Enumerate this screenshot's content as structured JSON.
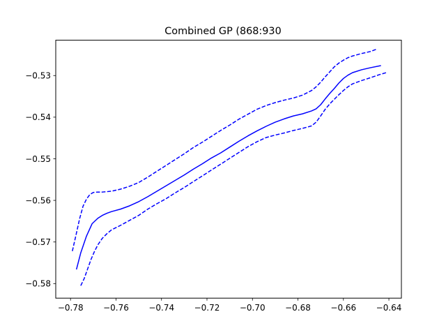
{
  "chart_data": {
    "type": "line",
    "title": "Combined GP (868:930",
    "xlabel": "",
    "ylabel": "",
    "xlim": [
      -0.7865,
      -0.6345
    ],
    "ylim": [
      -0.5835,
      -0.5215
    ],
    "xticks": [
      -0.78,
      -0.76,
      -0.74,
      -0.72,
      -0.7,
      -0.68,
      -0.66,
      -0.64
    ],
    "xtick_labels": [
      "−0.78",
      "−0.76",
      "−0.74",
      "−0.72",
      "−0.70",
      "−0.68",
      "−0.66",
      "−0.64"
    ],
    "yticks": [
      -0.53,
      -0.54,
      -0.55,
      -0.56,
      -0.57,
      -0.58
    ],
    "ytick_labels": [
      "−0.53",
      "−0.54",
      "−0.55",
      "−0.56",
      "−0.57",
      "−0.58"
    ],
    "grid": false,
    "legend": "none",
    "color": "#0000ff",
    "series": [
      {
        "style": "solid",
        "x": [
          -0.7774,
          -0.7755,
          -0.773,
          -0.7705,
          -0.768,
          -0.766,
          -0.764,
          -0.762,
          -0.758,
          -0.754,
          -0.75,
          -0.746,
          -0.742,
          -0.738,
          -0.734,
          -0.73,
          -0.726,
          -0.722,
          -0.718,
          -0.714,
          -0.71,
          -0.706,
          -0.702,
          -0.698,
          -0.694,
          -0.69,
          -0.686,
          -0.682,
          -0.678,
          -0.674,
          -0.672,
          -0.67,
          -0.668,
          -0.666,
          -0.664,
          -0.662,
          -0.66,
          -0.658,
          -0.656,
          -0.652,
          -0.648,
          -0.6435
        ],
        "y": [
          -0.5766,
          -0.5726,
          -0.5686,
          -0.5656,
          -0.5643,
          -0.5636,
          -0.5631,
          -0.5627,
          -0.5621,
          -0.5613,
          -0.5603,
          -0.5591,
          -0.5578,
          -0.5565,
          -0.5552,
          -0.5539,
          -0.5525,
          -0.5512,
          -0.5498,
          -0.5486,
          -0.5472,
          -0.5458,
          -0.5445,
          -0.5433,
          -0.5422,
          -0.5412,
          -0.5404,
          -0.5397,
          -0.5392,
          -0.5385,
          -0.538,
          -0.537,
          -0.5356,
          -0.5343,
          -0.5331,
          -0.5318,
          -0.5307,
          -0.5299,
          -0.5293,
          -0.5286,
          -0.5281,
          -0.5276
        ]
      },
      {
        "style": "dashed",
        "x": [
          -0.7792,
          -0.7775,
          -0.776,
          -0.7745,
          -0.773,
          -0.7715,
          -0.77,
          -0.768,
          -0.766,
          -0.764,
          -0.762,
          -0.758,
          -0.754,
          -0.75,
          -0.746,
          -0.742,
          -0.738,
          -0.734,
          -0.73,
          -0.726,
          -0.722,
          -0.718,
          -0.714,
          -0.71,
          -0.706,
          -0.702,
          -0.698,
          -0.694,
          -0.69,
          -0.686,
          -0.682,
          -0.678,
          -0.674,
          -0.672,
          -0.67,
          -0.668,
          -0.666,
          -0.664,
          -0.662,
          -0.66,
          -0.658,
          -0.656,
          -0.652,
          -0.648,
          -0.6452
        ],
        "y": [
          -0.5722,
          -0.5681,
          -0.5644,
          -0.5614,
          -0.5597,
          -0.5586,
          -0.5581,
          -0.558,
          -0.558,
          -0.5579,
          -0.5578,
          -0.5573,
          -0.5566,
          -0.5557,
          -0.5544,
          -0.553,
          -0.5516,
          -0.5502,
          -0.5488,
          -0.5473,
          -0.546,
          -0.5446,
          -0.5432,
          -0.5419,
          -0.5405,
          -0.5393,
          -0.5381,
          -0.5372,
          -0.5365,
          -0.5359,
          -0.5354,
          -0.5347,
          -0.5336,
          -0.5327,
          -0.5316,
          -0.5303,
          -0.5291,
          -0.5279,
          -0.527,
          -0.5263,
          -0.5257,
          -0.5253,
          -0.5247,
          -0.5242,
          -0.5236
        ]
      },
      {
        "style": "dashed",
        "x": [
          -0.7755,
          -0.774,
          -0.7725,
          -0.771,
          -0.7695,
          -0.768,
          -0.766,
          -0.764,
          -0.762,
          -0.758,
          -0.754,
          -0.75,
          -0.746,
          -0.742,
          -0.738,
          -0.734,
          -0.73,
          -0.726,
          -0.722,
          -0.718,
          -0.714,
          -0.71,
          -0.706,
          -0.702,
          -0.698,
          -0.694,
          -0.69,
          -0.686,
          -0.682,
          -0.678,
          -0.674,
          -0.672,
          -0.67,
          -0.668,
          -0.666,
          -0.664,
          -0.662,
          -0.66,
          -0.658,
          -0.656,
          -0.652,
          -0.648,
          -0.6443,
          -0.6412
        ],
        "y": [
          -0.5805,
          -0.5788,
          -0.5765,
          -0.5742,
          -0.5723,
          -0.5707,
          -0.5691,
          -0.568,
          -0.5671,
          -0.566,
          -0.5648,
          -0.5636,
          -0.5621,
          -0.5608,
          -0.5596,
          -0.5582,
          -0.5569,
          -0.5555,
          -0.5541,
          -0.5527,
          -0.5513,
          -0.5499,
          -0.5485,
          -0.5471,
          -0.5459,
          -0.5449,
          -0.5443,
          -0.5438,
          -0.5432,
          -0.5427,
          -0.5421,
          -0.5412,
          -0.5397,
          -0.5381,
          -0.5368,
          -0.5357,
          -0.5346,
          -0.5336,
          -0.5327,
          -0.532,
          -0.5312,
          -0.5305,
          -0.5298,
          -0.5293
        ]
      }
    ]
  }
}
